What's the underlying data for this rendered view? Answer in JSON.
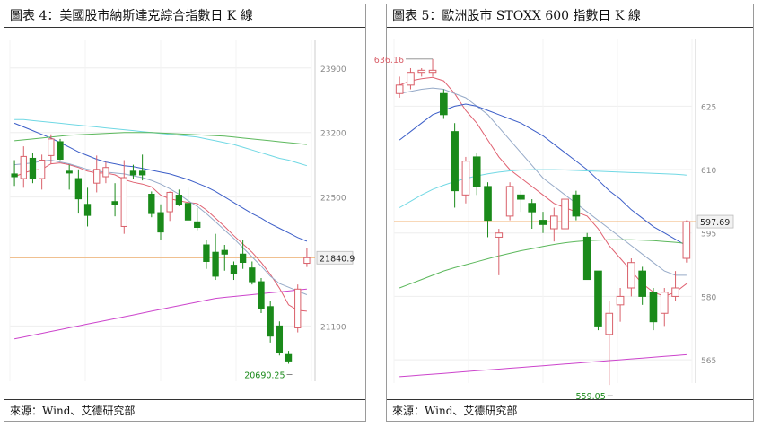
{
  "colors": {
    "up": "#d9606a",
    "down": "#1a8a1a",
    "bg": "#ffffff"
  },
  "left": {
    "title": "圖表 4：美國股市納斯達克綜合指數日 K 線",
    "source": "來源：Wind、艾德研究部",
    "chart_data": {
      "type": "candlestick",
      "ylim": [
        20500,
        24200
      ],
      "yticks": [
        23900,
        23200,
        22500,
        21840,
        21100
      ],
      "ytick_labels": [
        "23900",
        "23200",
        "22500",
        "",
        "21100"
      ],
      "last_price": 21840.9,
      "last_price_label": "21840.9",
      "low_label": "20690.25",
      "low_value": 20690.25,
      "candles": [
        {
          "o": 22750,
          "h": 22900,
          "l": 22620,
          "c": 22720
        },
        {
          "o": 22700,
          "h": 23050,
          "l": 22600,
          "c": 22940
        },
        {
          "o": 22920,
          "h": 22980,
          "l": 22650,
          "c": 22700
        },
        {
          "o": 22700,
          "h": 22960,
          "l": 22580,
          "c": 22900
        },
        {
          "o": 22950,
          "h": 23180,
          "l": 22860,
          "c": 23130
        },
        {
          "o": 23100,
          "h": 23130,
          "l": 22900,
          "c": 22910
        },
        {
          "o": 22780,
          "h": 22850,
          "l": 22580,
          "c": 22760
        },
        {
          "o": 22700,
          "h": 22800,
          "l": 22320,
          "c": 22480
        },
        {
          "o": 22420,
          "h": 22600,
          "l": 22180,
          "c": 22300
        },
        {
          "o": 22650,
          "h": 22950,
          "l": 22550,
          "c": 22800
        },
        {
          "o": 22720,
          "h": 22880,
          "l": 22650,
          "c": 22820
        },
        {
          "o": 22450,
          "h": 22650,
          "l": 22290,
          "c": 22420
        },
        {
          "o": 22180,
          "h": 22900,
          "l": 22100,
          "c": 22710
        },
        {
          "o": 22780,
          "h": 22850,
          "l": 22700,
          "c": 22740
        },
        {
          "o": 22780,
          "h": 22960,
          "l": 22680,
          "c": 22740
        },
        {
          "o": 22530,
          "h": 22560,
          "l": 22280,
          "c": 22320
        },
        {
          "o": 22330,
          "h": 22420,
          "l": 22030,
          "c": 22120
        },
        {
          "o": 22340,
          "h": 22560,
          "l": 22240,
          "c": 22550
        },
        {
          "o": 22520,
          "h": 22580,
          "l": 22400,
          "c": 22420
        },
        {
          "o": 22430,
          "h": 22600,
          "l": 22250,
          "c": 22250
        },
        {
          "o": 22230,
          "h": 22380,
          "l": 22140,
          "c": 22170
        },
        {
          "o": 21980,
          "h": 22030,
          "l": 21720,
          "c": 21800
        },
        {
          "o": 21900,
          "h": 22100,
          "l": 21600,
          "c": 21640
        },
        {
          "o": 21920,
          "h": 21980,
          "l": 21700,
          "c": 21880
        },
        {
          "o": 21760,
          "h": 21800,
          "l": 21600,
          "c": 21670
        },
        {
          "o": 21880,
          "h": 22030,
          "l": 21720,
          "c": 21790
        },
        {
          "o": 21730,
          "h": 21800,
          "l": 21550,
          "c": 21580
        },
        {
          "o": 21580,
          "h": 21620,
          "l": 21240,
          "c": 21290
        },
        {
          "o": 21310,
          "h": 21370,
          "l": 20920,
          "c": 20990
        },
        {
          "o": 21100,
          "h": 21150,
          "l": 20780,
          "c": 20810
        },
        {
          "o": 20790,
          "h": 20830,
          "l": 20690.25,
          "c": 20720
        },
        {
          "o": 21080,
          "h": 21550,
          "l": 21030,
          "c": 21500
        },
        {
          "o": 21780,
          "h": 21950,
          "l": 21740,
          "c": 21840.9
        }
      ],
      "ma_lines": [
        {
          "color": "#e06070",
          "values": [
            22720,
            22760,
            22790,
            22800,
            22860,
            22870,
            22850,
            22820,
            22780,
            22760,
            22760,
            22740,
            22690,
            22660,
            22640,
            22610,
            22520,
            22480,
            22460,
            22440,
            22430,
            22360,
            22270,
            22180,
            22080,
            21990,
            21900,
            21790,
            21660,
            21510,
            21330,
            21270,
            21260
          ]
        },
        {
          "color": "#96aac8",
          "values": [
            22850,
            22860,
            22870,
            22890,
            22900,
            22880,
            22860,
            22830,
            22800,
            22780,
            22770,
            22760,
            22750,
            22730,
            22710,
            22680,
            22640,
            22590,
            22530,
            22460,
            22400,
            22320,
            22230,
            22140,
            22050,
            21950,
            21850,
            21750,
            21640,
            21560,
            21520,
            21480,
            21440
          ]
        },
        {
          "color": "#3c5ec8",
          "values": [
            23300,
            23260,
            23220,
            23180,
            23140,
            23090,
            23040,
            22990,
            22950,
            22910,
            22880,
            22860,
            22840,
            22830,
            22810,
            22790,
            22770,
            22750,
            22720,
            22690,
            22650,
            22610,
            22560,
            22500,
            22440,
            22380,
            22320,
            22270,
            22210,
            22160,
            22110,
            22060,
            22020
          ]
        },
        {
          "color": "#70d8e4",
          "values": [
            23340,
            23340,
            23330,
            23320,
            23310,
            23300,
            23290,
            23280,
            23270,
            23260,
            23250,
            23240,
            23230,
            23220,
            23210,
            23200,
            23190,
            23180,
            23170,
            23160,
            23150,
            23130,
            23110,
            23090,
            23070,
            23040,
            23010,
            22980,
            22950,
            22920,
            22900,
            22870,
            22840
          ]
        },
        {
          "color": "#5cb85c",
          "values": [
            23110,
            23120,
            23130,
            23140,
            23150,
            23160,
            23170,
            23175,
            23180,
            23185,
            23190,
            23195,
            23200,
            23200,
            23200,
            23200,
            23195,
            23190,
            23185,
            23180,
            23175,
            23170,
            23165,
            23160,
            23150,
            23140,
            23130,
            23120,
            23110,
            23100,
            23090,
            23080,
            23070
          ]
        },
        {
          "color": "#cc44cc",
          "values": [
            20960,
            20980,
            21000,
            21020,
            21040,
            21060,
            21080,
            21100,
            21120,
            21140,
            21160,
            21180,
            21200,
            21220,
            21240,
            21260,
            21280,
            21300,
            21320,
            21340,
            21360,
            21380,
            21400,
            21410,
            21420,
            21430,
            21440,
            21450,
            21460,
            21470,
            21480,
            21490,
            21500
          ]
        }
      ]
    }
  },
  "right": {
    "title": "圖表 5：歐洲股市 STOXX 600 指數日 K 線",
    "source": "來源：Wind、艾德研究部",
    "chart_data": {
      "type": "candlestick",
      "ylim": [
        559.5,
        641
      ],
      "yticks": [
        625,
        610,
        597.69,
        595,
        580,
        565
      ],
      "ytick_labels": [
        "625",
        "610",
        "",
        "595",
        "580",
        "565"
      ],
      "last_price": 597.69,
      "last_price_label": "597.69",
      "high_label": "636.16",
      "high_value": 636.16,
      "low_label": "559.05",
      "low_value": 559.05,
      "candles": [
        {
          "o": 628,
          "h": 632,
          "l": 627,
          "c": 630
        },
        {
          "o": 630,
          "h": 634,
          "l": 629,
          "c": 633
        },
        {
          "o": 633,
          "h": 634,
          "l": 632,
          "c": 633.5
        },
        {
          "o": 633,
          "h": 636.16,
          "l": 632,
          "c": 633.5
        },
        {
          "o": 628,
          "h": 629,
          "l": 622,
          "c": 623
        },
        {
          "o": 619,
          "h": 621,
          "l": 601,
          "c": 605
        },
        {
          "o": 604,
          "h": 613,
          "l": 602,
          "c": 612
        },
        {
          "o": 613,
          "h": 614,
          "l": 604,
          "c": 606
        },
        {
          "o": 606,
          "h": 607,
          "l": 594,
          "c": 598
        },
        {
          "o": 594,
          "h": 596,
          "l": 585,
          "c": 595
        },
        {
          "o": 599,
          "h": 607,
          "l": 598,
          "c": 606
        },
        {
          "o": 604,
          "h": 605,
          "l": 600,
          "c": 603
        },
        {
          "o": 602,
          "h": 603,
          "l": 596,
          "c": 600
        },
        {
          "o": 598,
          "h": 600,
          "l": 595,
          "c": 597
        },
        {
          "o": 596,
          "h": 601,
          "l": 593,
          "c": 599
        },
        {
          "o": 596,
          "h": 603,
          "l": 596,
          "c": 603
        },
        {
          "o": 604,
          "h": 605,
          "l": 598,
          "c": 599
        },
        {
          "o": 594,
          "h": 595,
          "l": 584,
          "c": 584
        },
        {
          "o": 586,
          "h": 586,
          "l": 572,
          "c": 573
        },
        {
          "o": 571,
          "h": 579,
          "l": 559.05,
          "c": 576
        },
        {
          "o": 578,
          "h": 582,
          "l": 574,
          "c": 580
        },
        {
          "o": 582,
          "h": 589,
          "l": 580,
          "c": 588
        },
        {
          "o": 586,
          "h": 587,
          "l": 578,
          "c": 580
        },
        {
          "o": 581,
          "h": 582,
          "l": 572,
          "c": 574
        },
        {
          "o": 576,
          "h": 582,
          "l": 573,
          "c": 581
        },
        {
          "o": 580,
          "h": 586,
          "l": 579,
          "c": 582
        },
        {
          "o": 589,
          "h": 598,
          "l": 588,
          "c": 597.69
        }
      ],
      "ma_lines": [
        {
          "color": "#e06070",
          "values": [
            630,
            631,
            631.5,
            631.8,
            631,
            628,
            624,
            621,
            617,
            613,
            610,
            608,
            606,
            604,
            602,
            601,
            600,
            599,
            596,
            592,
            589,
            586,
            583,
            581,
            580,
            581,
            583
          ]
        },
        {
          "color": "#96aac8",
          "values": [
            628,
            628.5,
            629,
            629.3,
            629,
            628,
            627,
            625,
            623,
            620,
            617,
            614,
            611,
            608,
            606,
            604,
            602,
            600,
            598,
            596,
            594,
            592,
            590,
            588,
            586,
            585,
            585
          ]
        },
        {
          "color": "#3c5ec8",
          "values": [
            617,
            619,
            621,
            623,
            624,
            625,
            625.5,
            625,
            624,
            623,
            622,
            621,
            619.5,
            618,
            616,
            614,
            612,
            610,
            607.5,
            605,
            603,
            600.5,
            598.5,
            596.5,
            595,
            593.5,
            592
          ]
        },
        {
          "color": "#70d8e4",
          "values": [
            601,
            602.5,
            604,
            605.3,
            606.3,
            607.2,
            607.9,
            608.5,
            609,
            609.4,
            609.7,
            609.9,
            610,
            610,
            610,
            609.9,
            609.8,
            609.7,
            609.6,
            609.5,
            609.4,
            609.3,
            609.2,
            609.1,
            609,
            608.9,
            608.7
          ]
        },
        {
          "color": "#5cb85c",
          "values": [
            582,
            583,
            584,
            585,
            586,
            586.8,
            587.5,
            588.2,
            588.9,
            589.6,
            590.2,
            590.8,
            591.3,
            591.8,
            592.3,
            592.7,
            593,
            593.2,
            593.3,
            593.4,
            593.4,
            593.4,
            593.3,
            593.2,
            593,
            592.8,
            592.5
          ]
        },
        {
          "color": "#cc44cc",
          "values": [
            561,
            561.2,
            561.4,
            561.6,
            561.8,
            562,
            562.2,
            562.4,
            562.6,
            562.8,
            563,
            563.2,
            563.4,
            563.6,
            563.8,
            564,
            564.2,
            564.4,
            564.6,
            564.8,
            565,
            565.2,
            565.4,
            565.6,
            565.8,
            566,
            566.2
          ]
        }
      ]
    }
  }
}
